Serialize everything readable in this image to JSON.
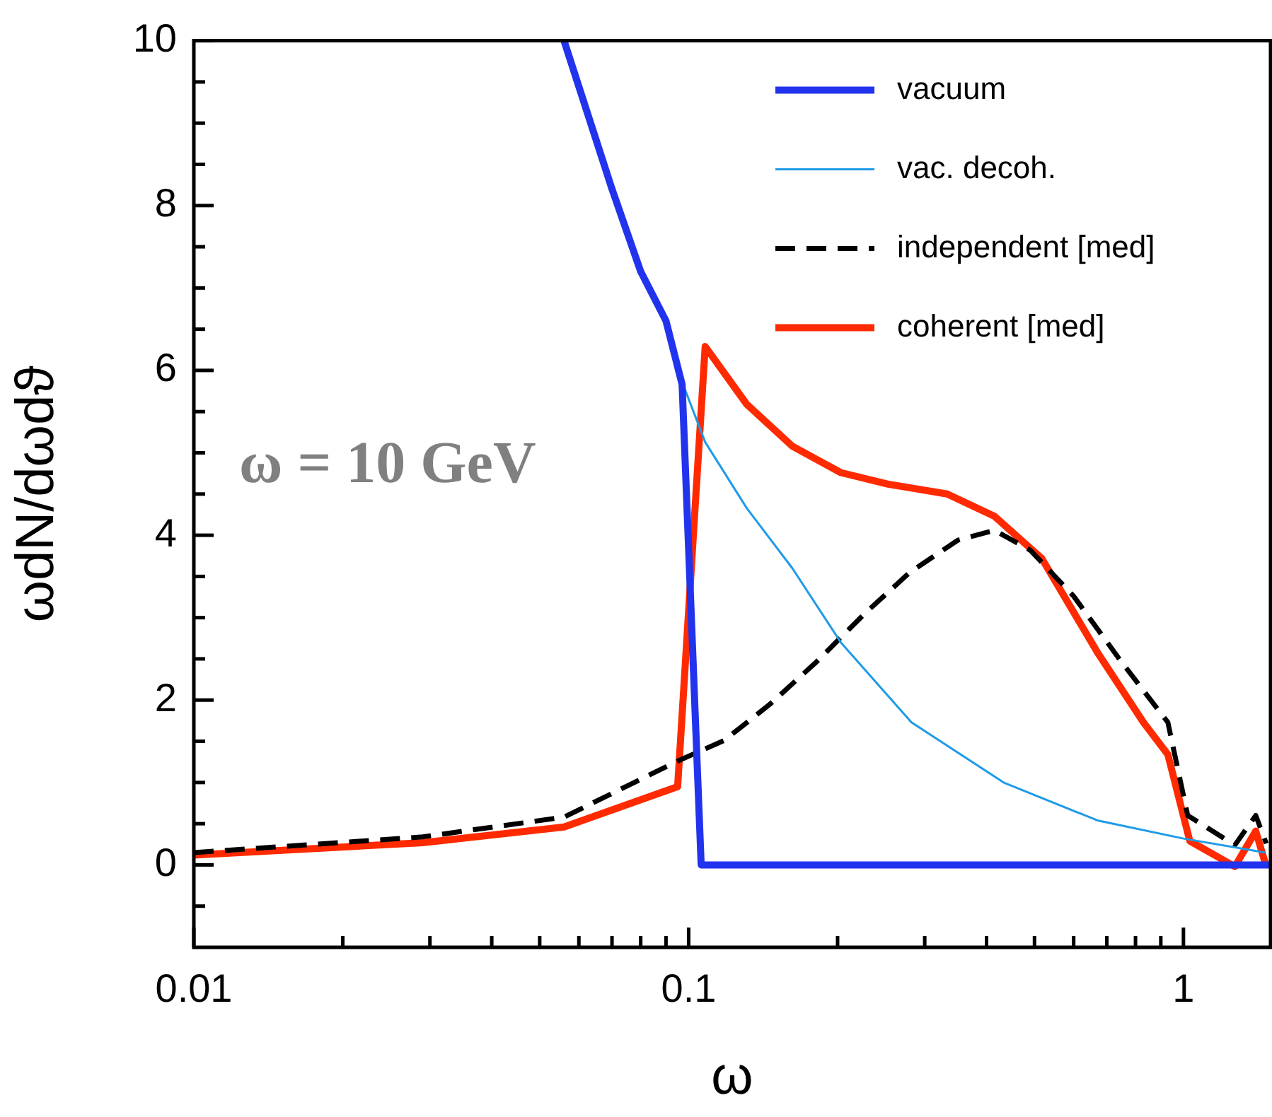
{
  "chart_data": {
    "type": "line",
    "xlabel": "ω",
    "ylabel": "ωdN/dωdϑ",
    "log": "x",
    "xlim": [
      0.01,
      1.5
    ],
    "ylim": [
      -1,
      10
    ],
    "xticks": [
      0.01,
      {
        "value": 0.02,
        "label": null
      },
      {
        "value": 0.03,
        "label": null
      },
      {
        "value": 0.04,
        "label": null
      },
      {
        "value": 0.05,
        "label": null
      },
      {
        "value": 0.06,
        "label": null
      },
      {
        "value": 0.07,
        "label": null
      },
      {
        "value": 0.08,
        "label": null
      },
      {
        "value": 0.09,
        "label": null
      },
      0.1,
      {
        "value": 0.2,
        "label": null
      },
      {
        "value": 0.3,
        "label": null
      },
      {
        "value": 0.4,
        "label": null
      },
      {
        "value": 0.5,
        "label": null
      },
      {
        "value": 0.6,
        "label": null
      },
      {
        "value": 0.7,
        "label": null
      },
      {
        "value": 0.8,
        "label": null
      },
      {
        "value": 0.9,
        "label": null
      },
      1
    ],
    "yticks": [
      {
        "value": -0.5,
        "label": null
      },
      0,
      {
        "value": 0.5,
        "label": null
      },
      {
        "value": 1,
        "label": null
      },
      {
        "value": 1.5,
        "label": null
      },
      2,
      {
        "value": 2.5,
        "label": null
      },
      {
        "value": 3,
        "label": null
      },
      {
        "value": 3.5,
        "label": null
      },
      4,
      {
        "value": 4.5,
        "label": null
      },
      {
        "value": 5,
        "label": null
      },
      {
        "value": 5.5,
        "label": null
      },
      6,
      {
        "value": 6.5,
        "label": null
      },
      {
        "value": 7,
        "label": null
      },
      {
        "value": 7.5,
        "label": null
      },
      8,
      {
        "value": 8.5,
        "label": null
      },
      {
        "value": 9,
        "label": null
      },
      {
        "value": 9.5,
        "label": null
      },
      10
    ],
    "grid": false,
    "legend": "top right",
    "marker": "none",
    "annotations": [
      "ω = 10 GeV"
    ],
    "series": [
      {
        "name": "vacuum",
        "color": "#2233ee",
        "x": [
          0.056,
          0.07,
          0.08,
          0.09,
          0.097,
          0.106,
          1.5
        ],
        "values": [
          10,
          8.2,
          7.2,
          6.6,
          5.83,
          0,
          0
        ]
      },
      {
        "name": "vac. decoh.",
        "color": "#1e9be8",
        "x": [
          0.0946,
          0.108,
          0.131,
          0.162,
          0.203,
          0.282,
          0.433,
          0.67,
          1.0,
          1.46
        ],
        "values": [
          6.03,
          5.13,
          4.33,
          3.6,
          2.7,
          1.73,
          1.0,
          0.54,
          0.32,
          0.15
        ]
      },
      {
        "name": "independent [med]",
        "color": "#000000",
        "line_style": "dashed",
        "x": [
          0.01,
          0.029,
          0.056,
          0.095,
          0.118,
          0.146,
          0.181,
          0.226,
          0.28,
          0.35,
          0.415,
          0.49,
          0.6,
          0.75,
          0.93,
          1.02,
          1.27,
          1.4,
          1.47
        ],
        "values": [
          0.15,
          0.34,
          0.58,
          1.26,
          1.51,
          1.95,
          2.46,
          3.04,
          3.55,
          3.94,
          4.06,
          3.82,
          3.26,
          2.46,
          1.73,
          0.6,
          0.24,
          0.6,
          0.26
        ]
      },
      {
        "name": "coherent [med]",
        "color": "#ff2a00",
        "x": [
          0.01,
          0.029,
          0.056,
          0.095,
          0.108,
          0.131,
          0.162,
          0.203,
          0.253,
          0.333,
          0.415,
          0.517,
          0.67,
          0.83,
          0.93,
          1.03,
          1.27,
          1.4,
          1.47
        ],
        "values": [
          0.12,
          0.27,
          0.46,
          0.95,
          6.29,
          5.59,
          5.08,
          4.76,
          4.62,
          4.5,
          4.23,
          3.72,
          2.58,
          1.73,
          1.34,
          0.29,
          -0.02,
          0.41,
          -0.02
        ]
      }
    ]
  }
}
